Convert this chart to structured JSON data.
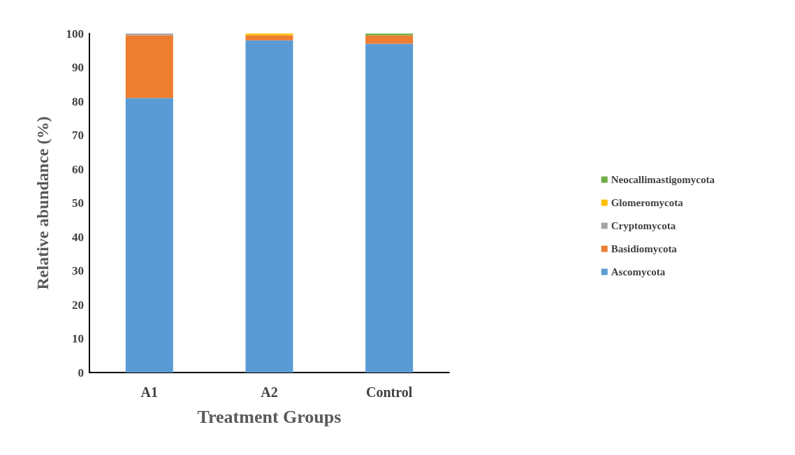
{
  "chart_data": {
    "type": "bar",
    "stacked": true,
    "xlabel": "Treatment Groups",
    "ylabel": "Relative abundance (%)",
    "categories": [
      "A1",
      "A2",
      "Control"
    ],
    "series": [
      {
        "name": "Ascomycota",
        "color": "#5b9bd5",
        "values": [
          81,
          98,
          97
        ]
      },
      {
        "name": "Basidiomycota",
        "color": "#ed7d31",
        "values": [
          18.5,
          1.5,
          2.5
        ]
      },
      {
        "name": "Cryptomycota",
        "color": "#a5a5a5",
        "values": [
          0.5,
          0,
          0
        ]
      },
      {
        "name": "Glomeromycota",
        "color": "#ffc000",
        "values": [
          0,
          0.5,
          0
        ]
      },
      {
        "name": "Neocallimastigomycota",
        "color": "#70ad47",
        "values": [
          0,
          0,
          0.5
        ]
      }
    ],
    "ylim": [
      0,
      100
    ],
    "yticks": [
      0,
      10,
      20,
      30,
      40,
      50,
      60,
      70,
      80,
      90,
      100
    ],
    "grid": false,
    "legend": "right"
  }
}
